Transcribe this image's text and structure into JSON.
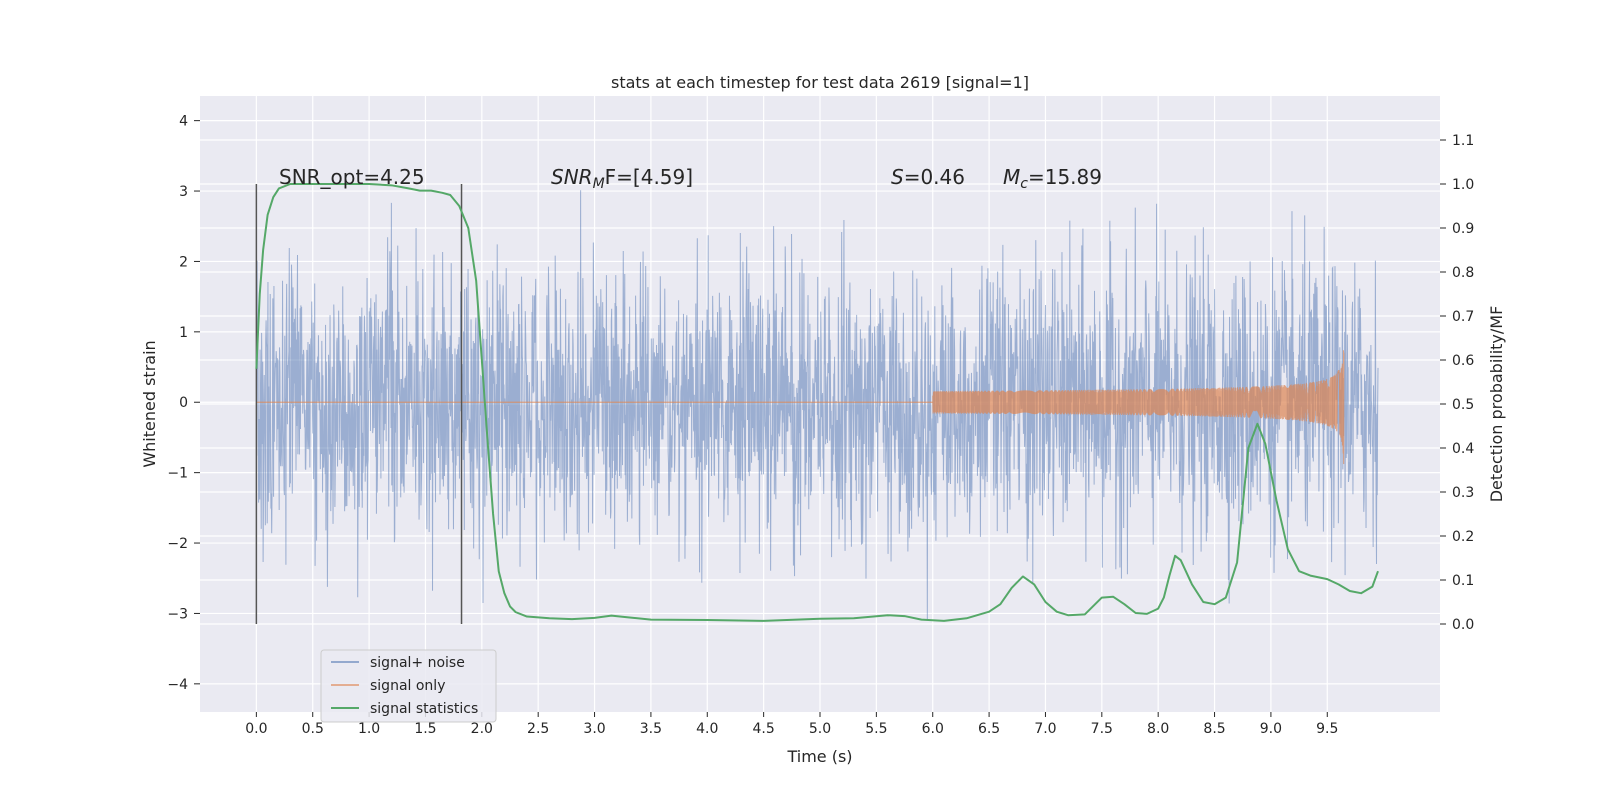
{
  "chart_data": {
    "type": "line",
    "title": "stats at each timestep for test data 2619 [signal=1]",
    "xlabel": "Time (s)",
    "ylabel": "Whitened strain",
    "ylabel_right": "Detection probability/MF",
    "xlim": [
      -0.5,
      10.5
    ],
    "ylim": [
      -4.4,
      4.35
    ],
    "ylim_right": [
      -0.2,
      1.2
    ],
    "x_ticks": [
      "0.0",
      "0.5",
      "1.0",
      "1.5",
      "2.0",
      "2.5",
      "3.0",
      "3.5",
      "4.0",
      "4.5",
      "5.0",
      "5.5",
      "6.0",
      "6.5",
      "7.0",
      "7.5",
      "8.0",
      "8.5",
      "9.0",
      "9.5"
    ],
    "x_tick_values": [
      0,
      0.5,
      1,
      1.5,
      2,
      2.5,
      3,
      3.5,
      4,
      4.5,
      5,
      5.5,
      6,
      6.5,
      7,
      7.5,
      8,
      8.5,
      9,
      9.5
    ],
    "y_ticks": [
      "4",
      "3",
      "2",
      "1",
      "0",
      "−1",
      "−2",
      "−3",
      "−4"
    ],
    "y_tick_values": [
      4,
      3,
      2,
      1,
      0,
      -1,
      -2,
      -3,
      -4
    ],
    "y_right_ticks": [
      "1.1",
      "1.0",
      "0.9",
      "0.8",
      "0.7",
      "0.6",
      "0.5",
      "0.4",
      "0.3",
      "0.2",
      "0.1",
      "0.0"
    ],
    "y_right_tick_values": [
      1.1,
      1.0,
      0.9,
      0.8,
      0.7,
      0.6,
      0.5,
      0.4,
      0.3,
      0.2,
      0.1,
      0.0
    ],
    "grid": true,
    "legend_position": "lower-left",
    "annotations": {
      "snr_opt": "SNR_opt=4.25",
      "snr_mf_name": "SNR",
      "snr_mf_sub": "M",
      "snr_mf_tail": "F=[4.59]",
      "s_name": "S",
      "s_value": "=0.46",
      "mc_name": "M",
      "mc_sub": "c",
      "mc_value": "=15.89"
    },
    "vlines": [
      0.0,
      1.82
    ],
    "vline_range": [
      -3.15,
      3.1
    ],
    "noise": {
      "start": 0.0,
      "end": 9.95,
      "sigma": 1.0,
      "band_min": -3.7,
      "band_max": 3.95
    },
    "chirp": {
      "start": 6.0,
      "end": 9.65,
      "peak_amplitude": 0.9
    },
    "series": [
      {
        "name": "signal+ noise",
        "color": "#4c72b0"
      },
      {
        "name": "signal only",
        "color": "#dd8452"
      },
      {
        "name": "signal statistics",
        "color": "#55a868",
        "x": [
          0.0,
          0.03,
          0.06,
          0.1,
          0.15,
          0.2,
          0.3,
          0.5,
          0.8,
          1.0,
          1.2,
          1.35,
          1.45,
          1.55,
          1.65,
          1.72,
          1.8,
          1.88,
          1.95,
          2.0,
          2.05,
          2.1,
          2.15,
          2.2,
          2.25,
          2.3,
          2.4,
          2.6,
          2.8,
          3.0,
          3.15,
          3.3,
          3.5,
          4.0,
          4.5,
          5.0,
          5.3,
          5.6,
          5.75,
          5.9,
          6.1,
          6.3,
          6.5,
          6.6,
          6.7,
          6.8,
          6.9,
          7.0,
          7.1,
          7.2,
          7.35,
          7.5,
          7.6,
          7.7,
          7.8,
          7.9,
          8.0,
          8.05,
          8.1,
          8.15,
          8.2,
          8.3,
          8.4,
          8.5,
          8.6,
          8.7,
          8.8,
          8.88,
          8.95,
          9.05,
          9.15,
          9.25,
          9.35,
          9.5,
          9.6,
          9.7,
          9.8,
          9.9,
          9.95
        ],
        "y": [
          0.58,
          0.75,
          0.85,
          0.93,
          0.97,
          0.99,
          1.0,
          1.0,
          1.0,
          1.0,
          0.997,
          0.99,
          0.985,
          0.985,
          0.98,
          0.975,
          0.95,
          0.9,
          0.78,
          0.6,
          0.42,
          0.25,
          0.12,
          0.07,
          0.04,
          0.027,
          0.017,
          0.013,
          0.011,
          0.014,
          0.019,
          0.015,
          0.01,
          0.009,
          0.007,
          0.012,
          0.013,
          0.02,
          0.018,
          0.01,
          0.007,
          0.013,
          0.028,
          0.045,
          0.082,
          0.108,
          0.09,
          0.05,
          0.028,
          0.02,
          0.022,
          0.06,
          0.062,
          0.045,
          0.025,
          0.023,
          0.035,
          0.06,
          0.11,
          0.155,
          0.145,
          0.09,
          0.05,
          0.045,
          0.06,
          0.14,
          0.4,
          0.455,
          0.41,
          0.28,
          0.17,
          0.12,
          0.11,
          0.102,
          0.09,
          0.075,
          0.07,
          0.085,
          0.12
        ]
      }
    ]
  }
}
